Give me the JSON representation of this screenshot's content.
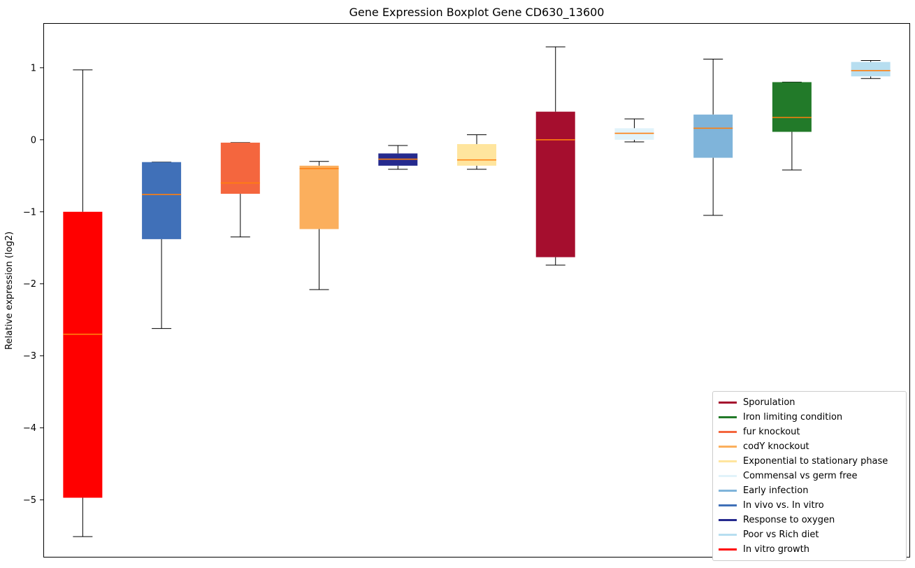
{
  "chart_data": {
    "type": "box",
    "title": "Gene Expression Boxplot Gene CD630_13600",
    "xlabel": "",
    "ylabel": "Relative expression (log2)",
    "ylim": [
      -5.8,
      1.62
    ],
    "yticks": [
      1,
      0,
      -1,
      -2,
      -3,
      -4,
      -5
    ],
    "grid": false,
    "median_color": "#ff7f0e",
    "whisker_color": "#000000",
    "boxes": [
      {
        "condition": "In vitro growth",
        "color": "#ff0000",
        "whisker_low": -5.51,
        "q1": -4.97,
        "median": -2.7,
        "q3": -1.0,
        "whisker_high": 0.97
      },
      {
        "condition": "In vivo vs. In vitro",
        "color": "#4070b8",
        "whisker_low": -2.62,
        "q1": -1.38,
        "median": -0.76,
        "q3": -0.31,
        "whisker_high": -0.31
      },
      {
        "condition": "fur knockout",
        "color": "#f4663e",
        "whisker_low": -1.35,
        "q1": -0.75,
        "median": -0.6,
        "q3": -0.04,
        "whisker_high": -0.04
      },
      {
        "condition": "codY knockout",
        "color": "#fbaf5d",
        "whisker_low": -2.08,
        "q1": -1.24,
        "median": -0.4,
        "q3": -0.36,
        "whisker_high": -0.3
      },
      {
        "condition": "Response to oxygen",
        "color": "#252a8e",
        "whisker_low": -0.41,
        "q1": -0.36,
        "median": -0.27,
        "q3": -0.19,
        "whisker_high": -0.08
      },
      {
        "condition": "Exponential to stationary phase",
        "color": "#ffe59e",
        "whisker_low": -0.41,
        "q1": -0.36,
        "median": -0.28,
        "q3": -0.06,
        "whisker_high": 0.07
      },
      {
        "condition": "Sporulation",
        "color": "#a50e2e",
        "whisker_low": -1.74,
        "q1": -1.63,
        "median": 0.0,
        "q3": 0.39,
        "whisker_high": 1.29
      },
      {
        "condition": "Commensal vs germ free",
        "color": "#e1f3fa",
        "whisker_low": -0.03,
        "q1": 0.0,
        "median": 0.09,
        "q3": 0.16,
        "whisker_high": 0.29
      },
      {
        "condition": "Early infection",
        "color": "#7fb4da",
        "whisker_low": -1.05,
        "q1": -0.25,
        "median": 0.16,
        "q3": 0.35,
        "whisker_high": 1.12
      },
      {
        "condition": "Iron limiting condition",
        "color": "#227a29",
        "whisker_low": -0.42,
        "q1": 0.11,
        "median": 0.31,
        "q3": 0.8,
        "whisker_high": 0.8
      },
      {
        "condition": "Poor vs Rich diet",
        "color": "#b7def0",
        "whisker_low": 0.85,
        "q1": 0.88,
        "median": 0.96,
        "q3": 1.08,
        "whisker_high": 1.1
      }
    ],
    "legend": {
      "position": "lower right",
      "entries": [
        {
          "label": "Sporulation",
          "color": "#a50e2e"
        },
        {
          "label": "Iron limiting condition",
          "color": "#227a29"
        },
        {
          "label": "fur knockout",
          "color": "#f4663e"
        },
        {
          "label": "codY knockout",
          "color": "#fbaf5d"
        },
        {
          "label": "Exponential to stationary phase",
          "color": "#ffe59e"
        },
        {
          "label": "Commensal vs germ free",
          "color": "#e1f3fa"
        },
        {
          "label": "Early infection",
          "color": "#7fb4da"
        },
        {
          "label": "In vivo vs. In vitro",
          "color": "#4070b8"
        },
        {
          "label": "Response to oxygen",
          "color": "#252a8e"
        },
        {
          "label": "Poor vs Rich diet",
          "color": "#b7def0"
        },
        {
          "label": "In vitro growth",
          "color": "#ff0000"
        }
      ]
    }
  }
}
